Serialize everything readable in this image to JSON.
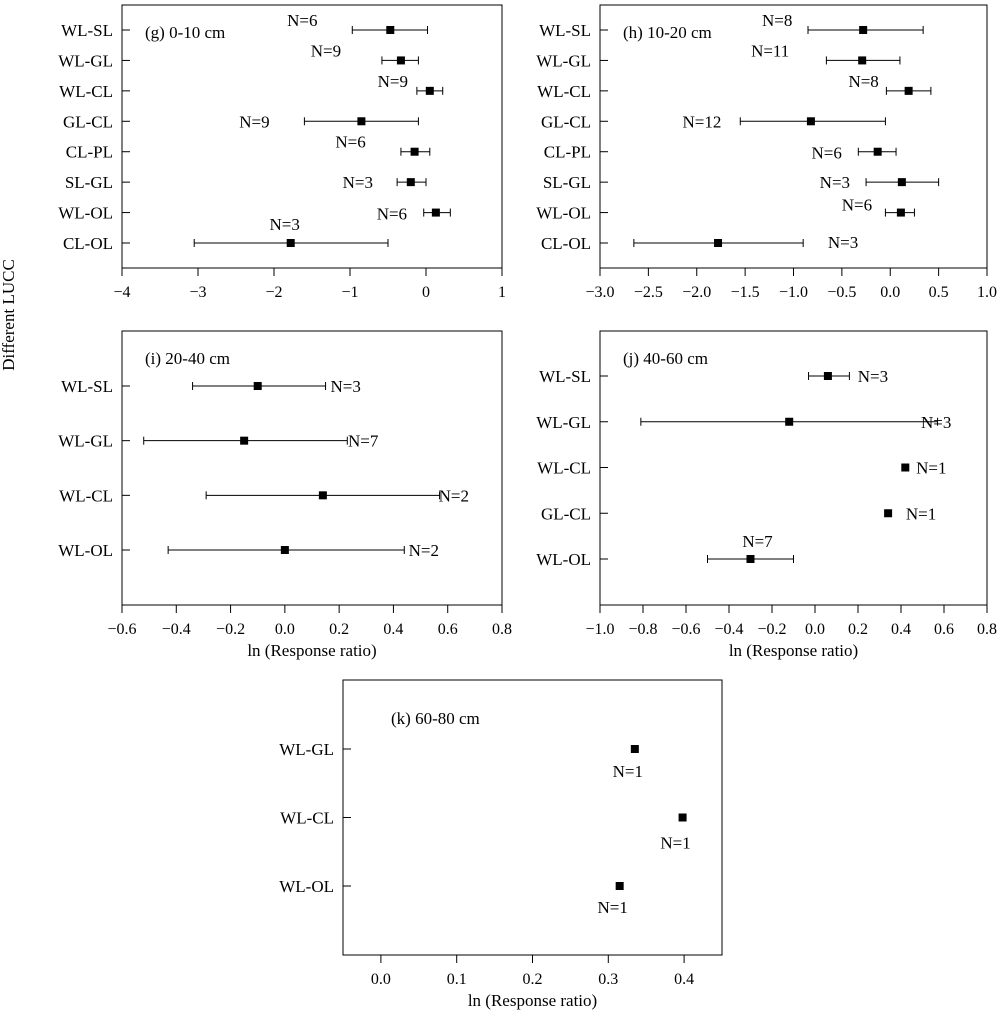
{
  "figure": {
    "shared_ylabel": "Different LUCC",
    "ci_error_bar_note": ""
  },
  "chart_data": [
    {
      "type": "scatter",
      "panel": "g",
      "title": "(g) 0-10 cm",
      "xlabel": "",
      "xlim": [
        -4,
        1
      ],
      "xticks": [
        -4,
        -3,
        -2,
        -1,
        0,
        1
      ],
      "xtick_labels": [
        "−4",
        "−3",
        "−2",
        "−1",
        "0",
        "1"
      ],
      "categories": [
        "WL-SL",
        "WL-GL",
        "WL-CL",
        "GL-CL",
        "CL-PL",
        "SL-GL",
        "WL-OL",
        "CL-OL"
      ],
      "values": [
        -0.47,
        -0.33,
        0.05,
        -0.85,
        -0.15,
        -0.2,
        0.13,
        -1.78
      ],
      "ci_low": [
        -0.97,
        -0.58,
        -0.12,
        -1.6,
        -0.33,
        -0.38,
        -0.03,
        -3.05
      ],
      "ci_high": [
        0.02,
        -0.1,
        0.22,
        -0.1,
        0.05,
        0.0,
        0.32,
        -0.5
      ],
      "n_labels": [
        "N=6",
        "N=9",
        "N=9",
        "N=9",
        "N=6",
        "N=3",
        "N=6",
        "N=3"
      ],
      "grid": false
    },
    {
      "type": "scatter",
      "panel": "h",
      "title": "(h) 10-20 cm",
      "xlabel": "",
      "xlim": [
        -3.0,
        1.0
      ],
      "xticks": [
        -3.0,
        -2.5,
        -2.0,
        -1.5,
        -1.0,
        -0.5,
        0.0,
        0.5,
        1.0
      ],
      "xtick_labels": [
        "−3.0",
        "−2.5",
        "−2.0",
        "−1.5",
        "−1.0",
        "−0.5",
        "0.0",
        "0.5",
        "1.0"
      ],
      "categories": [
        "WL-SL",
        "WL-GL",
        "WL-CL",
        "GL-CL",
        "CL-PL",
        "SL-GL",
        "WL-OL",
        "CL-OL"
      ],
      "values": [
        -0.28,
        -0.29,
        0.19,
        -0.82,
        -0.13,
        0.12,
        0.11,
        -1.78
      ],
      "ci_low": [
        -0.85,
        -0.66,
        -0.04,
        -1.55,
        -0.33,
        -0.25,
        -0.05,
        -2.65
      ],
      "ci_high": [
        0.34,
        0.1,
        0.42,
        -0.05,
        0.06,
        0.5,
        0.25,
        -0.9
      ],
      "n_labels": [
        "N=8",
        "N=11",
        "N=8",
        "N=12",
        "N=6",
        "N=3",
        "N=6",
        "N=3"
      ],
      "grid": false
    },
    {
      "type": "scatter",
      "panel": "i",
      "title": "(i) 20-40 cm",
      "xlabel": "ln (Response ratio)",
      "xlim": [
        -0.6,
        0.8
      ],
      "xticks": [
        -0.6,
        -0.4,
        -0.2,
        0.0,
        0.2,
        0.4,
        0.6,
        0.8
      ],
      "xtick_labels": [
        "−0.6",
        "−0.4",
        "−0.2",
        "0.0",
        "0.2",
        "0.4",
        "0.6",
        "0.8"
      ],
      "categories": [
        "WL-SL",
        "WL-GL",
        "WL-CL",
        "WL-OL"
      ],
      "values": [
        -0.1,
        -0.15,
        0.14,
        0.0
      ],
      "ci_low": [
        -0.34,
        -0.52,
        -0.29,
        -0.43
      ],
      "ci_high": [
        0.15,
        0.23,
        0.57,
        0.44
      ],
      "n_labels": [
        "N=3",
        "N=7",
        "N=2",
        "N=2"
      ],
      "grid": false
    },
    {
      "type": "scatter",
      "panel": "j",
      "title": "(j) 40-60 cm",
      "xlabel": "ln (Response ratio)",
      "xlim": [
        -1.0,
        0.8
      ],
      "xticks": [
        -1.0,
        -0.8,
        -0.6,
        -0.4,
        -0.2,
        0.0,
        0.2,
        0.4,
        0.6,
        0.8
      ],
      "xtick_labels": [
        "−1.0",
        "−0.8",
        "−0.6",
        "−0.4",
        "−0.2",
        "0.0",
        "0.2",
        "0.4",
        "0.6",
        "0.8"
      ],
      "categories": [
        "WL-SL",
        "WL-GL",
        "WL-CL",
        "GL-CL",
        "WL-OL"
      ],
      "values": [
        0.06,
        -0.12,
        0.42,
        0.34,
        -0.3
      ],
      "ci_low": [
        -0.03,
        -0.81,
        null,
        null,
        -0.5
      ],
      "ci_high": [
        0.16,
        0.57,
        null,
        null,
        -0.1
      ],
      "n_labels": [
        "N=3",
        "N=3",
        "N=1",
        "N=1",
        "N=7"
      ],
      "grid": false
    },
    {
      "type": "scatter",
      "panel": "k",
      "title": "(k) 60-80 cm",
      "xlabel": "ln (Response ratio)",
      "xlim": [
        -0.05,
        0.45
      ],
      "xticks": [
        0.0,
        0.1,
        0.2,
        0.3,
        0.4
      ],
      "xtick_labels": [
        "0.0",
        "0.1",
        "0.2",
        "0.3",
        "0.4"
      ],
      "categories": [
        "WL-GL",
        "WL-CL",
        "WL-OL"
      ],
      "values": [
        0.335,
        0.398,
        0.315
      ],
      "ci_low": [
        null,
        null,
        null
      ],
      "ci_high": [
        null,
        null,
        null
      ],
      "n_labels": [
        "N=1",
        "N=1",
        "N=1"
      ],
      "grid": false
    }
  ]
}
